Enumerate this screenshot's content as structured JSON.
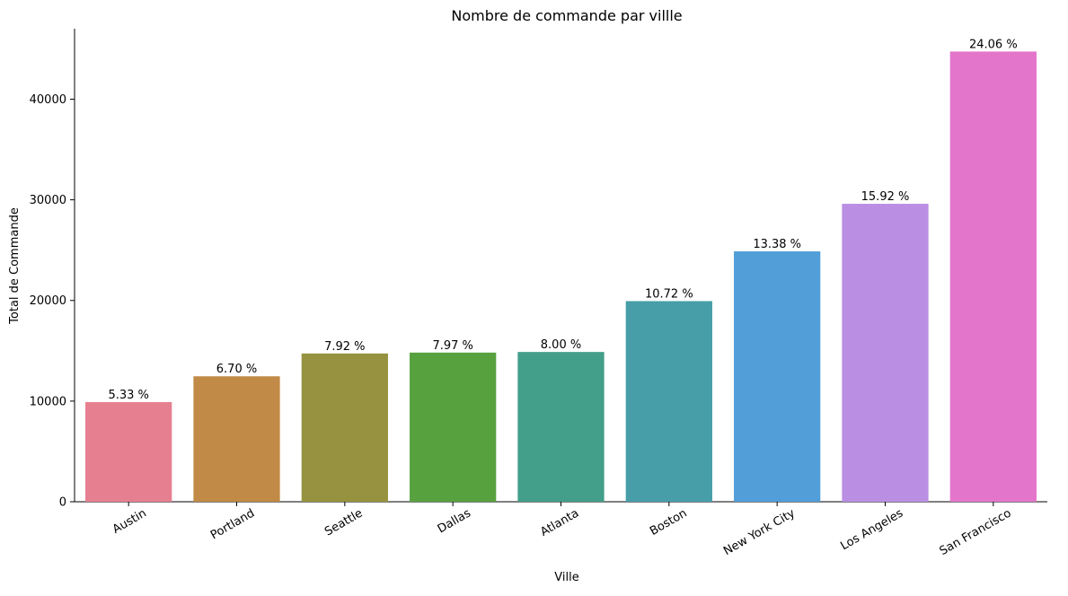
{
  "chart_data": {
    "type": "bar",
    "title": "Nombre de commande par villle",
    "x_label": "Ville",
    "y_label": "Total de Commande",
    "categories": [
      "Austin",
      "Portland",
      "Seattle",
      "Dallas",
      "Atlanta",
      "Boston",
      "New York City",
      "Los Angeles",
      "San Francisco"
    ],
    "values": [
      9905,
      12465,
      14732,
      14820,
      14881,
      19934,
      24876,
      29605,
      44732
    ],
    "bar_labels": [
      "5.33 %",
      "6.70 %",
      "7.92 %",
      "7.97 %",
      "8.00 %",
      "10.72 %",
      "13.38 %",
      "15.92 %",
      "24.06 %"
    ],
    "colors": [
      "#e67f90",
      "#c18a46",
      "#96923f",
      "#58a13f",
      "#439f89",
      "#479ea9",
      "#519ed8",
      "#ba8fe3",
      "#e375cb"
    ],
    "ylim": [
      0,
      47000
    ],
    "yticks": [
      0,
      10000,
      20000,
      30000,
      40000
    ]
  }
}
